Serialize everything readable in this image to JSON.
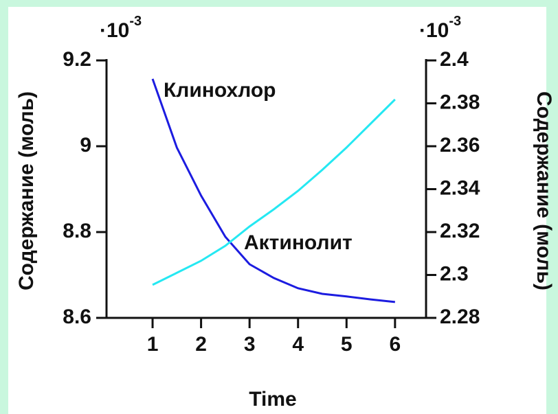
{
  "chart_data": {
    "type": "line",
    "xlabel": "Time",
    "ylabel": "Содержание (моль)",
    "y2label": "Содержание (моль)",
    "y_multiplier": {
      "base": "·10",
      "exponent": "-3"
    },
    "y2_multiplier": {
      "base": "·10",
      "exponent": "-3"
    },
    "x": [
      1,
      1.5,
      2,
      2.5,
      3,
      3.5,
      4,
      4.5,
      5,
      5.5,
      6
    ],
    "series": [
      {
        "name": "Клинохлор",
        "color": "#1c1ce0",
        "axis": "y",
        "values": [
          9.157,
          8.997,
          8.885,
          8.789,
          8.725,
          8.693,
          8.669,
          8.656,
          8.65,
          8.643,
          8.637
        ]
      },
      {
        "name": "Актинолит",
        "color": "#25e8f2",
        "axis": "y2",
        "values": [
          2.2954,
          2.301,
          2.3066,
          2.3136,
          2.3226,
          2.3306,
          2.3392,
          2.349,
          2.3594,
          2.3706,
          2.3818
        ]
      }
    ],
    "xlim": [
      0.05,
      6.64
    ],
    "xticks": [
      1,
      2,
      3,
      4,
      5,
      6
    ],
    "ylim": [
      8.6,
      9.2
    ],
    "yticks": [
      8.6,
      8.8,
      9,
      9.2
    ],
    "y2lim": [
      2.28,
      2.4
    ],
    "y2ticks": [
      2.28,
      2.3,
      2.32,
      2.34,
      2.36,
      2.38,
      2.4
    ]
  }
}
